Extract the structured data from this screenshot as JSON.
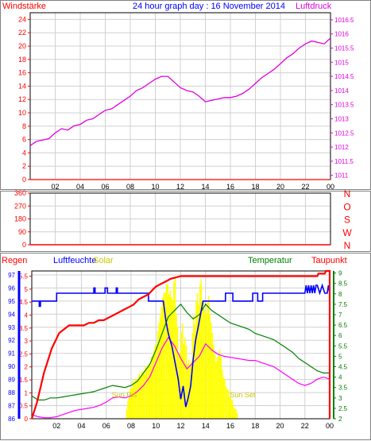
{
  "header": {
    "left_label": "Windstärke",
    "title": "24 hour graph day : 16 November 2014",
    "right_label": "Luftdruck"
  },
  "colors": {
    "frame": "#808080",
    "grid": "#d0d0d0",
    "wind": "#ff0000",
    "pressure": "#e000e0",
    "date_title": "#0000ff",
    "rain": "#ff0000",
    "humidity": "#0000ff",
    "solar": "#ffff00",
    "solar_label": "#c8c800",
    "temperature": "#008000",
    "dewpoint": "#ff00ff",
    "taupunkt_label": "#ff0000"
  },
  "chart_data": [
    {
      "type": "line",
      "x_ticks": [
        "02",
        "04",
        "06",
        "08",
        "10",
        "12",
        "14",
        "16",
        "18",
        "20",
        "22",
        "00"
      ],
      "left_axis": {
        "label": "Windstärke",
        "ticks": [
          0,
          2,
          4,
          6,
          8,
          10,
          12,
          14,
          16,
          18,
          20,
          22,
          24
        ],
        "range": [
          0,
          25
        ]
      },
      "right_axis": {
        "label": "Luftdruck",
        "ticks": [
          1011,
          1011.5,
          1012,
          1012.5,
          1013,
          1013.5,
          1014,
          1014.5,
          1015,
          1015.5,
          1016,
          1016.5
        ],
        "range": [
          1010.85,
          1016.75
        ]
      },
      "series": [
        {
          "name": "Luftdruck",
          "axis": "right",
          "x": [
            0.0,
            0.5,
            1.0,
            1.5,
            2.0,
            2.5,
            3.0,
            3.5,
            4.0,
            4.5,
            5.0,
            5.5,
            6.0,
            6.5,
            7.0,
            7.5,
            8.0,
            8.5,
            9.0,
            9.5,
            10.0,
            10.5,
            11.0,
            11.5,
            12.0,
            12.5,
            13.0,
            13.5,
            14.0,
            14.5,
            15.0,
            15.5,
            16.0,
            16.5,
            17.0,
            17.5,
            18.0,
            18.5,
            19.0,
            19.5,
            20.0,
            20.5,
            21.0,
            21.5,
            22.0,
            22.5,
            23.0,
            23.5,
            24.0
          ],
          "y": [
            1012.05,
            1012.2,
            1012.25,
            1012.3,
            1012.5,
            1012.65,
            1012.6,
            1012.75,
            1012.8,
            1012.95,
            1013.0,
            1013.15,
            1013.3,
            1013.35,
            1013.5,
            1013.65,
            1013.8,
            1014.0,
            1014.1,
            1014.25,
            1014.4,
            1014.5,
            1014.5,
            1014.3,
            1014.1,
            1014.0,
            1013.95,
            1013.8,
            1013.6,
            1013.65,
            1013.7,
            1013.75,
            1013.75,
            1013.8,
            1013.9,
            1014.05,
            1014.25,
            1014.45,
            1014.6,
            1014.75,
            1014.95,
            1015.15,
            1015.3,
            1015.5,
            1015.65,
            1015.75,
            1015.7,
            1015.65,
            1015.85
          ]
        },
        {
          "name": "Windstärke",
          "axis": "left",
          "x": [
            0,
            24
          ],
          "y": [
            0,
            0
          ]
        }
      ]
    },
    {
      "type": "line",
      "x_ticks": [
        "02",
        "04",
        "06",
        "08",
        "10",
        "12",
        "14",
        "16",
        "18",
        "20",
        "22",
        "00"
      ],
      "left_axis": {
        "ticks": [
          0,
          90,
          180,
          270,
          360
        ],
        "range": [
          0,
          360
        ]
      },
      "right_axis": {
        "ticks": [
          "N",
          "W",
          "S",
          "O",
          "N"
        ]
      },
      "series": [
        {
          "name": "Windrichtung",
          "x": [
            0,
            24
          ],
          "y": [
            0,
            0
          ]
        }
      ]
    },
    {
      "type": "line",
      "x_ticks": [
        "02",
        "04",
        "06",
        "08",
        "10",
        "12",
        "14",
        "16",
        "18",
        "20",
        "22",
        "00"
      ],
      "labels": {
        "regen": "Regen",
        "luftfeuchte": "Luftfeuchte",
        "solar": "Solar",
        "temperatur": "Temperatur",
        "taupunkt": "Taupunkt",
        "sun_rise": "Sun Ris",
        "sun_set": "Sun Set"
      },
      "rain_axis": {
        "ticks": [
          0,
          0.5,
          1,
          1.5,
          2,
          2.5,
          3,
          3.5,
          4,
          4.5,
          5,
          5.5
        ],
        "range": [
          0,
          5.7
        ]
      },
      "humidity_axis": {
        "ticks": [
          86,
          87,
          88,
          89,
          90,
          91,
          92,
          93,
          94,
          95,
          96,
          97
        ],
        "range": [
          86,
          97.3
        ]
      },
      "temp_axis": {
        "ticks": [
          2,
          2.5,
          3,
          3.5,
          4,
          4.5,
          5,
          5.5,
          6,
          6.5,
          7,
          7.5,
          8,
          8.5,
          9
        ],
        "range": [
          2,
          9.1
        ]
      },
      "sun_rise_hour": 7.6,
      "sun_set_hour": 16.6,
      "series": [
        {
          "name": "Regen",
          "x": [
            0,
            0.2,
            0.4,
            0.6,
            0.8,
            1.0,
            1.2,
            1.4,
            1.6,
            1.8,
            2.0,
            2.2,
            2.6,
            3.0,
            3.4,
            3.8,
            4.2,
            4.6,
            5.0,
            5.4,
            5.8,
            6.2,
            6.6,
            7.0,
            7.4,
            7.8,
            8.2,
            8.6,
            9.0,
            9.4,
            9.6,
            9.8,
            10.0,
            10.4,
            10.8,
            11.2,
            11.6,
            12.0,
            14.0,
            16.0,
            18.0,
            20.0,
            22.0,
            23.0,
            23.1,
            23.6,
            23.7,
            24.0,
            24.0
          ],
          "y": [
            0,
            0.3,
            0.6,
            1.0,
            1.4,
            1.8,
            2.1,
            2.4,
            2.7,
            2.9,
            3.1,
            3.3,
            3.45,
            3.6,
            3.6,
            3.6,
            3.6,
            3.7,
            3.7,
            3.8,
            3.8,
            3.9,
            4.0,
            4.1,
            4.2,
            4.3,
            4.4,
            4.6,
            4.7,
            4.8,
            4.9,
            5.0,
            5.1,
            5.2,
            5.3,
            5.4,
            5.45,
            5.5,
            5.5,
            5.5,
            5.5,
            5.5,
            5.5,
            5.5,
            5.6,
            5.6,
            5.7,
            5.7,
            0
          ]
        },
        {
          "name": "Luftfeuchte",
          "x": [
            0,
            0.6,
            0.6,
            0.7,
            0.7,
            2.0,
            2.0,
            5.0,
            5.0,
            5.1,
            5.1,
            5.9,
            5.9,
            6.1,
            6.1,
            6.8,
            6.8,
            6.9,
            6.9,
            9.4,
            9.4,
            9.6,
            10.6,
            10.8,
            11.0,
            11.3,
            11.5,
            11.8,
            12.0,
            12.2,
            12.4,
            12.6,
            12.8,
            13.0,
            13.2,
            13.4,
            13.6,
            13.8,
            14.2,
            14.5,
            15.0,
            15.6,
            15.6,
            16.2,
            16.2,
            17.8,
            17.8,
            18.2,
            18.2,
            18.6,
            18.6,
            19.2,
            19.2,
            22.0,
            22.1,
            22.2,
            22.3,
            22.4,
            22.5,
            22.6,
            22.7,
            22.8,
            22.9,
            23.0,
            23.2,
            23.4,
            23.6,
            23.8,
            23.9,
            24.0
          ],
          "y": [
            95,
            95,
            94.6,
            94.6,
            95,
            95,
            95.6,
            95.6,
            96,
            96,
            95.6,
            95.6,
            96,
            96,
            95.6,
            95.6,
            96,
            96,
            95.6,
            95.6,
            95,
            95,
            95,
            93.5,
            92.5,
            91.5,
            90.5,
            89.0,
            87.5,
            88.5,
            86.9,
            87.6,
            88.5,
            90.5,
            92.0,
            93.0,
            94.0,
            95.0,
            95.0,
            95.0,
            95.0,
            95.0,
            95.6,
            95.6,
            95.0,
            95.0,
            95.6,
            95.6,
            95.0,
            95.0,
            95.6,
            95.6,
            95.6,
            95.6,
            96.2,
            95.6,
            96.2,
            95.6,
            96.2,
            95.6,
            96.2,
            95.6,
            96.2,
            96.2,
            95.6,
            96.2,
            95.6,
            95.6,
            96.2,
            95.6
          ]
        },
        {
          "name": "Temperatur",
          "x": [
            0,
            0.5,
            1.0,
            1.5,
            2.0,
            2.5,
            3.0,
            3.5,
            4.0,
            4.5,
            5.0,
            5.5,
            6.0,
            6.5,
            7.0,
            7.5,
            8.0,
            8.5,
            9.0,
            9.5,
            10.0,
            10.5,
            11.0,
            11.5,
            12.0,
            12.5,
            13.0,
            13.5,
            14.0,
            14.5,
            15.0,
            15.5,
            16.0,
            16.5,
            17.0,
            17.5,
            18.0,
            18.5,
            19.0,
            19.5,
            20.0,
            20.5,
            21.0,
            21.5,
            22.0,
            22.5,
            23.0,
            23.5,
            24.0
          ],
          "y": [
            3.1,
            2.9,
            2.9,
            3.0,
            3.0,
            3.05,
            3.1,
            3.15,
            3.2,
            3.25,
            3.3,
            3.4,
            3.5,
            3.6,
            3.55,
            3.5,
            3.6,
            3.8,
            4.2,
            4.6,
            5.3,
            6.1,
            6.9,
            7.2,
            7.5,
            7.1,
            6.8,
            7.0,
            7.5,
            7.2,
            7.0,
            6.8,
            6.6,
            6.5,
            6.4,
            6.3,
            6.1,
            6.0,
            5.9,
            5.8,
            5.6,
            5.4,
            5.2,
            4.9,
            4.7,
            4.5,
            4.3,
            4.2,
            4.2
          ]
        },
        {
          "name": "Taupunkt",
          "x": [
            0,
            0.5,
            1.0,
            1.5,
            2.0,
            2.5,
            3.0,
            3.5,
            4.0,
            4.5,
            5.0,
            5.5,
            6.0,
            6.5,
            7.0,
            7.5,
            8.0,
            8.5,
            9.0,
            9.5,
            10.0,
            10.5,
            11.0,
            11.5,
            12.0,
            12.5,
            13.0,
            13.5,
            14.0,
            14.5,
            15.0,
            15.5,
            16.0,
            16.5,
            17.0,
            17.5,
            18.0,
            18.5,
            19.0,
            19.5,
            20.0,
            20.5,
            21.0,
            21.5,
            22.0,
            22.5,
            23.0,
            23.5,
            24.0
          ],
          "y": [
            2.2,
            2.1,
            2.05,
            2.05,
            2.1,
            2.2,
            2.3,
            2.4,
            2.45,
            2.5,
            2.55,
            2.65,
            2.8,
            3.0,
            3.05,
            3.0,
            3.1,
            3.3,
            3.6,
            4.0,
            4.7,
            5.4,
            5.9,
            5.5,
            4.9,
            4.4,
            4.7,
            5.0,
            5.6,
            5.3,
            5.1,
            5.0,
            4.95,
            4.9,
            4.85,
            4.8,
            4.8,
            4.7,
            4.6,
            4.5,
            4.3,
            4.1,
            3.9,
            3.7,
            3.6,
            3.7,
            3.9,
            4.0,
            3.9
          ]
        },
        {
          "name": "Solar",
          "x": [
            7.6,
            8.0,
            8.5,
            9.0,
            9.5,
            10.0,
            10.3,
            10.6,
            10.9,
            11.2,
            11.5,
            11.8,
            12.1,
            12.4,
            12.7,
            13.0,
            13.3,
            13.6,
            13.9,
            14.2,
            14.5,
            14.8,
            15.1,
            15.4,
            15.7,
            16.0,
            16.3,
            16.6
          ],
          "y": [
            0.08,
            0.25,
            0.3,
            0.35,
            0.4,
            0.55,
            0.75,
            0.9,
            0.95,
            0.85,
            0.98,
            0.45,
            0.65,
            0.5,
            0.35,
            0.7,
            0.85,
            0.95,
            0.75,
            0.85,
            0.6,
            0.4,
            0.5,
            0.3,
            0.22,
            0.15,
            0.08,
            0.03
          ]
        }
      ]
    }
  ]
}
